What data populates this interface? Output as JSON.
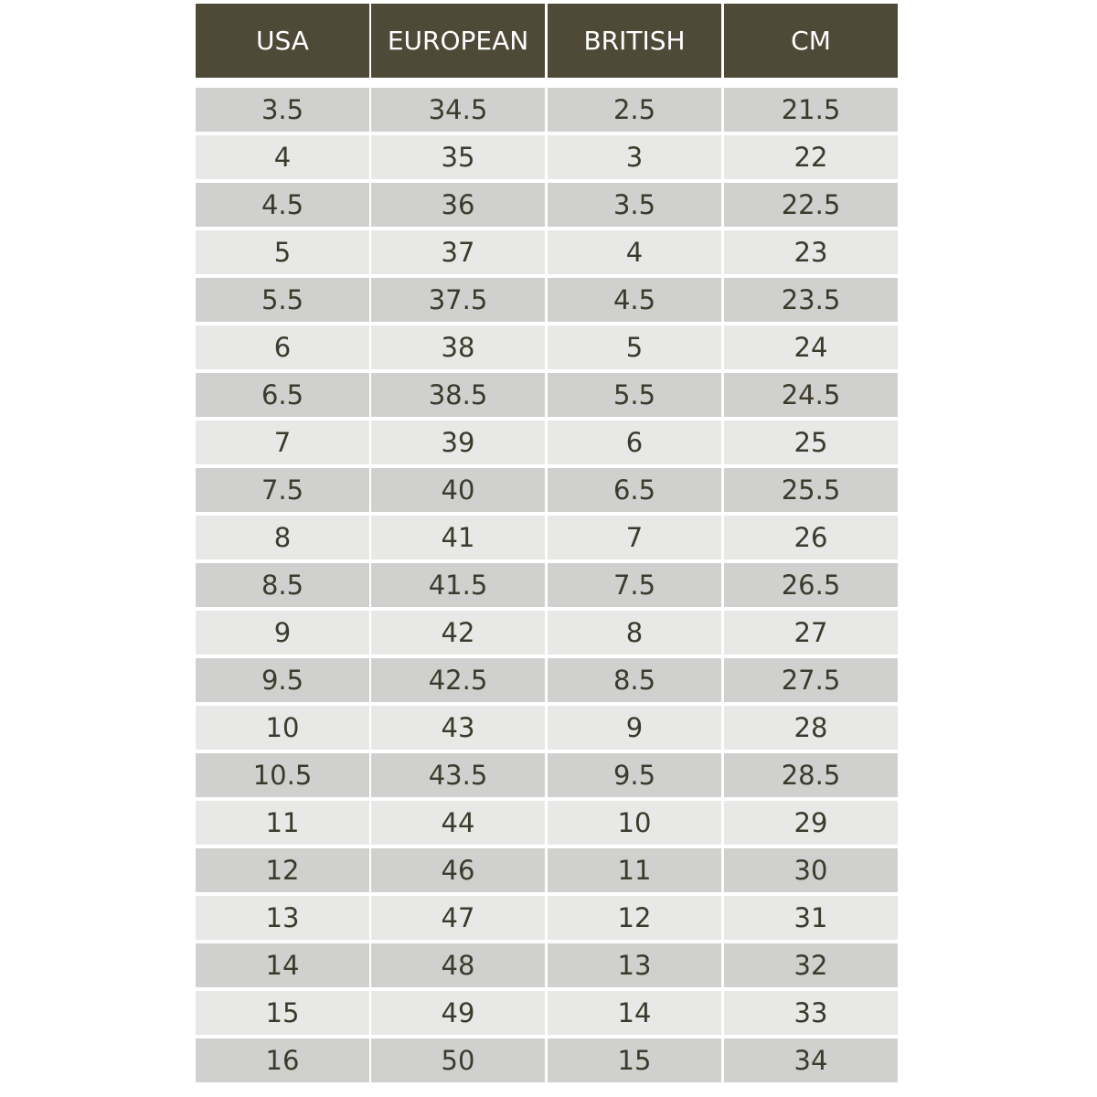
{
  "table": {
    "header": [
      "USA",
      "EUROPEAN",
      "BRITISH",
      "CM"
    ],
    "rows": [
      [
        "3.5",
        "34.5",
        "2.5",
        "21.5"
      ],
      [
        "4",
        "35",
        "3",
        "22"
      ],
      [
        "4.5",
        "36",
        "3.5",
        "22.5"
      ],
      [
        "5",
        "37",
        "4",
        "23"
      ],
      [
        "5.5",
        "37.5",
        "4.5",
        "23.5"
      ],
      [
        "6",
        "38",
        "5",
        "24"
      ],
      [
        "6.5",
        "38.5",
        "5.5",
        "24.5"
      ],
      [
        "7",
        "39",
        "6",
        "25"
      ],
      [
        "7.5",
        "40",
        "6.5",
        "25.5"
      ],
      [
        "8",
        "41",
        "7",
        "26"
      ],
      [
        "8.5",
        "41.5",
        "7.5",
        "26.5"
      ],
      [
        "9",
        "42",
        "8",
        "27"
      ],
      [
        "9.5",
        "42.5",
        "8.5",
        "27.5"
      ],
      [
        "10",
        "43",
        "9",
        "28"
      ],
      [
        "10.5",
        "43.5",
        "9.5",
        "28.5"
      ],
      [
        "11",
        "44",
        "10",
        "29"
      ],
      [
        "12",
        "46",
        "11",
        "30"
      ],
      [
        "13",
        "47",
        "12",
        "31"
      ],
      [
        "14",
        "48",
        "13",
        "32"
      ],
      [
        "15",
        "49",
        "14",
        "33"
      ],
      [
        "16",
        "50",
        "15",
        "34"
      ]
    ]
  }
}
